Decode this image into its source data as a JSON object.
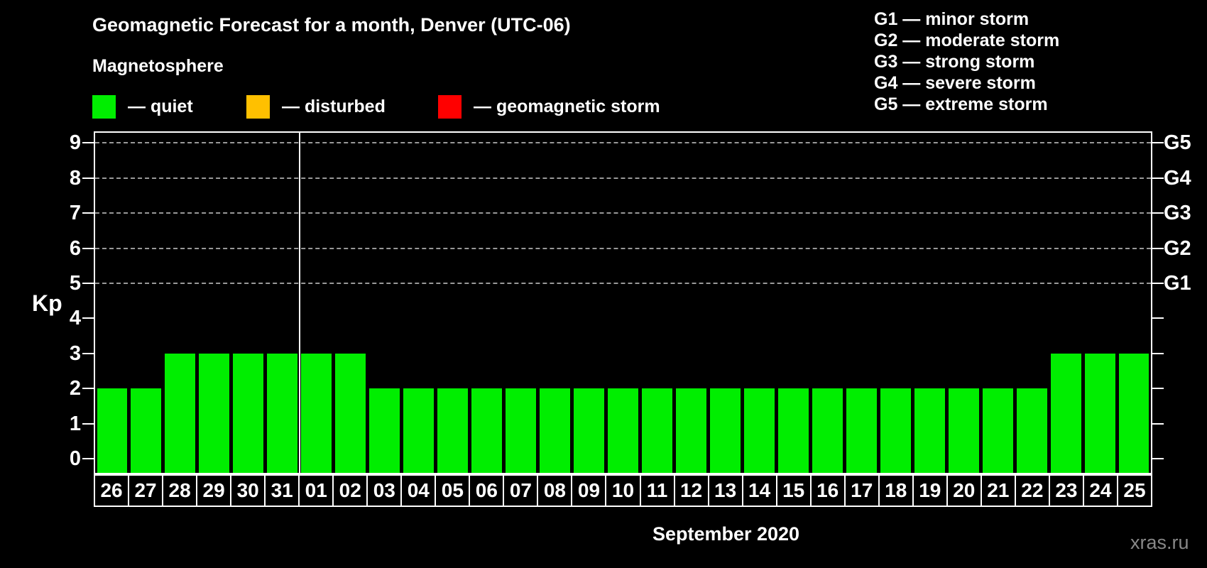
{
  "title": "Geomagnetic Forecast for a month, Denver (UTC-06)",
  "subtitle": "Magnetosphere",
  "legend": {
    "items": [
      {
        "name": "quiet",
        "label": "— quiet",
        "color": "#00EE00"
      },
      {
        "name": "disturbed",
        "label": "— disturbed",
        "color": "#FFC000"
      },
      {
        "name": "storm",
        "label": "— geomagnetic storm",
        "color": "#FF0000"
      }
    ]
  },
  "storm_scale_legend": {
    "items": [
      "G1 — minor storm",
      "G2 — moderate storm",
      "G3 — strong storm",
      "G4 — severe storm",
      "G5 — extreme storm"
    ]
  },
  "watermark": "xras.ru",
  "chart_data": {
    "type": "bar",
    "title": "Geomagnetic Forecast for a month, Denver (UTC-06)",
    "ylabel": "Kp",
    "xlabel": "September 2020",
    "categories": [
      "26",
      "27",
      "28",
      "29",
      "30",
      "31",
      "01",
      "02",
      "03",
      "04",
      "05",
      "06",
      "07",
      "08",
      "09",
      "10",
      "11",
      "12",
      "13",
      "14",
      "15",
      "16",
      "17",
      "18",
      "19",
      "20",
      "21",
      "22",
      "23",
      "24",
      "25"
    ],
    "values": [
      2,
      2,
      3,
      3,
      3,
      3,
      3,
      3,
      2,
      2,
      2,
      2,
      2,
      2,
      2,
      2,
      2,
      2,
      2,
      2,
      2,
      2,
      2,
      2,
      2,
      2,
      2,
      2,
      3,
      3,
      3
    ],
    "ylim": [
      0,
      9
    ],
    "yticks": [
      0,
      1,
      2,
      3,
      4,
      5,
      6,
      7,
      8,
      9
    ],
    "g_levels": [
      {
        "kp": 5,
        "label": "G1"
      },
      {
        "kp": 6,
        "label": "G2"
      },
      {
        "kp": 7,
        "label": "G3"
      },
      {
        "kp": 8,
        "label": "G4"
      },
      {
        "kp": 9,
        "label": "G5"
      }
    ],
    "month_separator_after_index": 5,
    "grid": "dashed horizontal lines at G storm levels only",
    "colors": {
      "quiet": "#00EE00",
      "disturbed": "#FFC000",
      "storm": "#FF0000"
    },
    "color_rule": {
      "quiet_below_kp": 4,
      "disturbed_below_kp": 5
    }
  }
}
